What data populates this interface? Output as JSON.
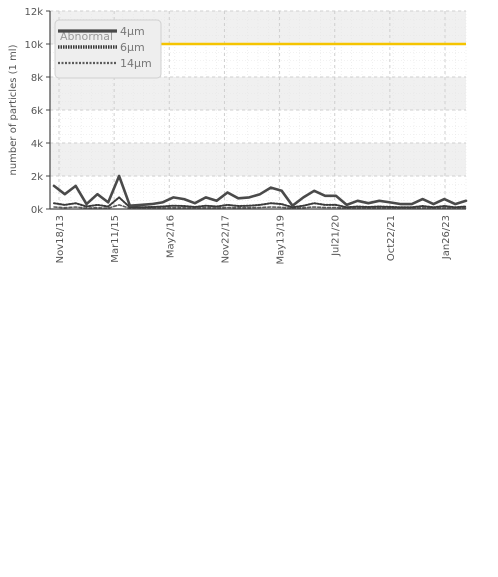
{
  "chart_data": {
    "type": "line",
    "ylabel": "number of particles (1 ml)",
    "ylim": [
      0,
      12000
    ],
    "y_ticks": [
      0,
      2000,
      4000,
      6000,
      8000,
      10000,
      12000
    ],
    "y_tick_labels": [
      "0k",
      "2k",
      "4k",
      "6k",
      "8k",
      "10k",
      "12k"
    ],
    "x_tick_labels": [
      "Nov18/13",
      "Mar11/15",
      "May2/16",
      "Nov22/17",
      "May13/19",
      "Jul21/20",
      "Oct22/21",
      "Jan26/23"
    ],
    "grid": true,
    "legend_placement": "top-left",
    "legend_watermark": "Abnormal",
    "series": [
      {
        "name": "4μm",
        "style": "solid",
        "color": "#4a4a4a",
        "values": [
          1400,
          900,
          1400,
          300,
          900,
          400,
          2000,
          200,
          250,
          300,
          400,
          700,
          600,
          350,
          700,
          500,
          1000,
          650,
          700,
          900,
          1300,
          1100,
          200,
          700,
          1100,
          800,
          800,
          250,
          500,
          350,
          500,
          400,
          300,
          300,
          600,
          300,
          600,
          300,
          500
        ]
      },
      {
        "name": "6μm",
        "style": "dotted",
        "color": "#3a3a3a",
        "values": [
          350,
          250,
          350,
          150,
          250,
          150,
          700,
          100,
          100,
          120,
          150,
          200,
          180,
          120,
          200,
          150,
          250,
          180,
          200,
          250,
          350,
          300,
          100,
          200,
          350,
          250,
          250,
          100,
          150,
          120,
          150,
          130,
          100,
          100,
          180,
          100,
          180,
          100,
          150
        ]
      },
      {
        "name": "14μm",
        "style": "dashed",
        "color": "#5a5a5a",
        "values": [
          120,
          80,
          120,
          50,
          80,
          50,
          250,
          40,
          40,
          50,
          60,
          80,
          70,
          50,
          80,
          60,
          90,
          70,
          80,
          90,
          120,
          100,
          40,
          80,
          120,
          90,
          90,
          40,
          60,
          50,
          60,
          50,
          40,
          40,
          70,
          40,
          70,
          40,
          60
        ]
      }
    ],
    "threshold": {
      "value": 10000,
      "color": "#f5c400"
    },
    "colors": {
      "band": "#f0f0f0",
      "axis": "#444444",
      "grid": "#cfcfcf"
    }
  }
}
